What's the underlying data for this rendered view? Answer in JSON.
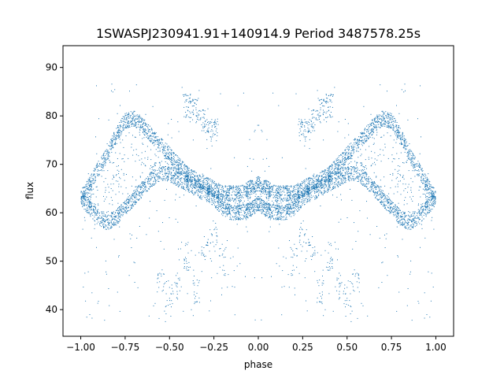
{
  "chart_data": {
    "type": "scatter",
    "title": "1SWASPJ230941.91+140914.9 Period 3487578.25s",
    "xlabel": "phase",
    "ylabel": "flux",
    "xlim": [
      -1.1,
      1.1
    ],
    "ylim": [
      34.5,
      94.5
    ],
    "xticks": [
      -1.0,
      -0.75,
      -0.5,
      -0.25,
      0.0,
      0.25,
      0.5,
      0.75,
      1.0
    ],
    "xtick_labels": [
      "−1.00",
      "−0.75",
      "−0.50",
      "−0.25",
      "0.00",
      "0.25",
      "0.50",
      "0.75",
      "1.00"
    ],
    "yticks": [
      40,
      50,
      60,
      70,
      80,
      90
    ],
    "ytick_labels": [
      "40",
      "50",
      "60",
      "70",
      "80",
      "90"
    ],
    "grid": false,
    "marker_color": "#1f77b4",
    "series": [
      {
        "phase_range": [
          -1.0,
          1.0
        ],
        "flux_range": [
          37,
          87
        ],
        "note_points": "dense phase-folded light curve, mirrored about phase 0",
        "upper_branch": [
          [
            -1.0,
            63
          ],
          [
            -0.95,
            66
          ],
          [
            -0.9,
            69
          ],
          [
            -0.85,
            72
          ],
          [
            -0.8,
            76
          ],
          [
            -0.75,
            79
          ],
          [
            -0.7,
            79.5
          ],
          [
            -0.65,
            78
          ],
          [
            -0.6,
            76
          ],
          [
            -0.55,
            74
          ],
          [
            -0.5,
            72
          ],
          [
            -0.45,
            70
          ],
          [
            -0.4,
            68
          ],
          [
            -0.35,
            67
          ],
          [
            -0.3,
            66
          ],
          [
            -0.25,
            65
          ],
          [
            -0.2,
            64
          ],
          [
            -0.15,
            64
          ],
          [
            -0.1,
            64
          ],
          [
            -0.05,
            65
          ],
          [
            0.0,
            66
          ]
        ],
        "lower_branch": [
          [
            -1.0,
            63
          ],
          [
            -0.95,
            61
          ],
          [
            -0.9,
            59
          ],
          [
            -0.85,
            58
          ],
          [
            -0.8,
            59
          ],
          [
            -0.75,
            61
          ],
          [
            -0.7,
            63
          ],
          [
            -0.65,
            65
          ],
          [
            -0.6,
            67
          ],
          [
            -0.55,
            68
          ],
          [
            -0.5,
            68
          ],
          [
            -0.45,
            67
          ],
          [
            -0.4,
            66
          ],
          [
            -0.35,
            65
          ],
          [
            -0.3,
            64
          ],
          [
            -0.25,
            63
          ],
          [
            -0.2,
            61
          ],
          [
            -0.15,
            60
          ],
          [
            -0.1,
            60
          ],
          [
            -0.05,
            60.5
          ],
          [
            0.0,
            62
          ]
        ],
        "high_cluster": [
          [
            -0.4,
            82
          ],
          [
            -0.35,
            81
          ],
          [
            -0.3,
            79
          ],
          [
            -0.25,
            77
          ]
        ],
        "low_outliers": [
          [
            -0.55,
            46
          ],
          [
            -0.5,
            43
          ],
          [
            -0.45,
            45
          ],
          [
            -0.4,
            51
          ],
          [
            -0.35,
            44
          ],
          [
            -0.3,
            53
          ],
          [
            -0.25,
            56
          ],
          [
            -0.2,
            50
          ]
        ]
      }
    ]
  }
}
